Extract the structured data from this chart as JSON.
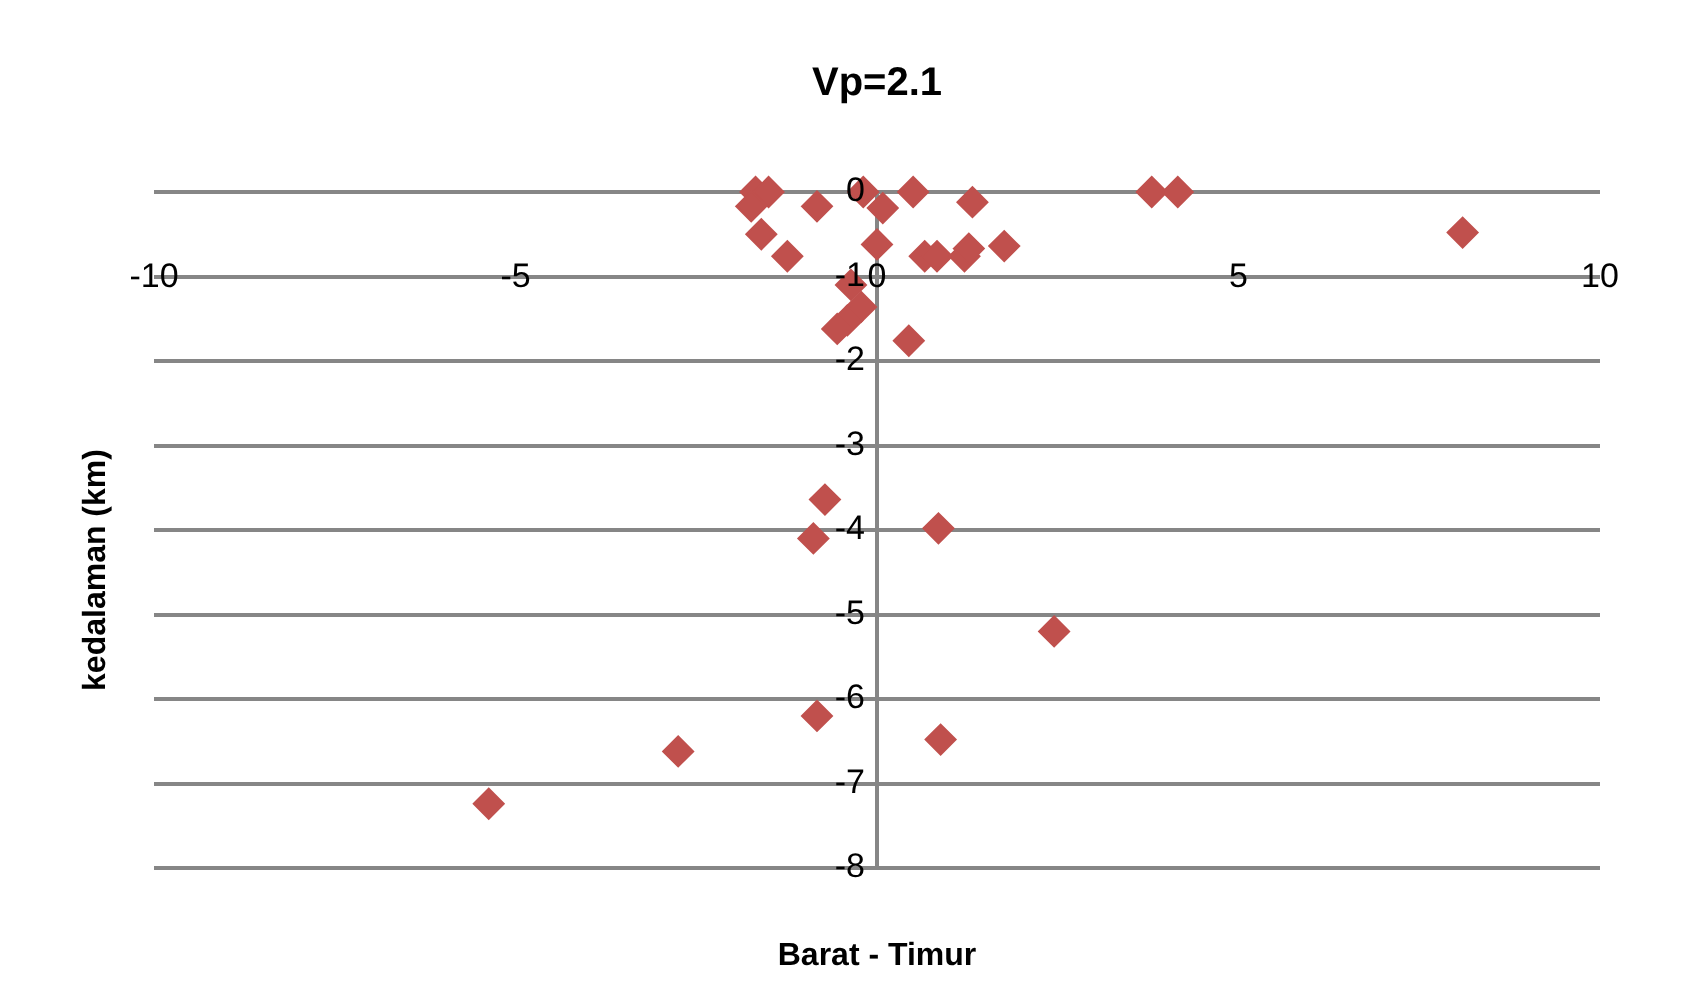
{
  "chart_data": {
    "type": "scatter",
    "title": "Vp=2.1",
    "xlabel": "Barat - Timur",
    "ylabel": "kedalaman (km)",
    "x": [
      -1.68,
      -1.5,
      -1.74,
      -1.6,
      -1.24,
      -0.83,
      -0.19,
      0.08,
      0,
      0.5,
      1.32,
      0.66,
      0.83,
      1.21,
      1.27,
      1.76,
      -0.36,
      -0.22,
      -0.41,
      -0.55,
      0.44,
      3.8,
      4.16,
      8.1,
      -0.72,
      -0.88,
      0.85,
      2.45,
      -0.83,
      0.88,
      -2.75,
      -5.37
    ],
    "series": [
      {
        "color": "#c0504d",
        "values": [
          0,
          0,
          -0.17,
          -0.5,
          -0.76,
          -0.17,
          0,
          -0.19,
          -0.62,
          0,
          -0.12,
          -0.76,
          -0.76,
          -0.76,
          -0.67,
          -0.64,
          -1.1,
          -1.36,
          -1.52,
          -1.62,
          -1.76,
          0,
          0,
          -0.48,
          -3.64,
          -4.1,
          -3.98,
          -5.2,
          -6.2,
          -6.48,
          -6.62,
          -7.24
        ]
      }
    ],
    "xlim": [
      -10,
      10
    ],
    "xticks": [
      -10,
      -5,
      0,
      5,
      10
    ],
    "ylim": [
      -8,
      0
    ],
    "yticks": [
      -8,
      -7,
      -6,
      -5,
      -4,
      -3,
      -2,
      -1,
      0
    ],
    "grid": "y",
    "legend": false,
    "marker": "diamond"
  }
}
